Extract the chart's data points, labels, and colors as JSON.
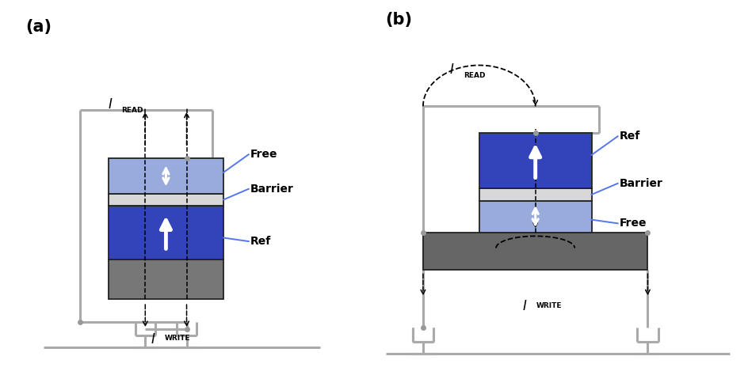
{
  "fig_width": 9.45,
  "fig_height": 4.74,
  "bg_color": "#ffffff",
  "wire_color": "#aaaaaa",
  "wire_lw": 2.2,
  "dot_color": "#999999",
  "dot_size": 5,
  "label_a": "(a)",
  "label_b": "(b)",
  "color_free_a": "#99aadd",
  "color_barrier": "#d8d8d8",
  "color_ref_a": "#3344bb",
  "color_bottom_a": "#777777",
  "color_ref_b": "#3344bb",
  "color_free_b": "#99aadd",
  "color_hm": "#666666",
  "anno_blue": "#5577ee",
  "label_free": "Free",
  "label_barrier": "Barrier",
  "label_ref": "Ref"
}
